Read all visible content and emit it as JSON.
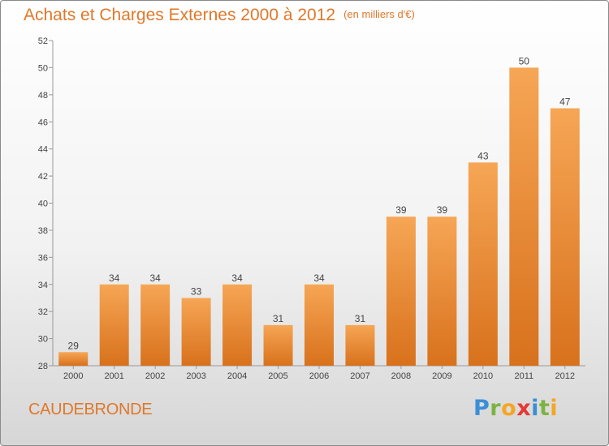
{
  "chart_data": {
    "type": "bar",
    "title": "Achats et Charges Externes 2000 à 2012",
    "unit": "(en milliers d'€)",
    "categories": [
      "2000",
      "2001",
      "2002",
      "2003",
      "2004",
      "2005",
      "2006",
      "2007",
      "2008",
      "2009",
      "2010",
      "2011",
      "2012"
    ],
    "values": [
      29,
      34,
      34,
      33,
      34,
      31,
      34,
      31,
      39,
      39,
      43,
      50,
      47
    ],
    "ylim": [
      28,
      52
    ],
    "yticks": [
      28,
      30,
      32,
      34,
      36,
      38,
      40,
      42,
      44,
      46,
      48,
      50,
      52
    ],
    "grid": false,
    "bar_color": "#f28c28"
  },
  "place_name": "CAUDEBRONDE",
  "logo": {
    "letters": [
      "P",
      "r",
      "o",
      "x",
      "i",
      "t",
      "i"
    ],
    "colors": [
      "#3a8fd6",
      "#7cb342",
      "#f5a623",
      "#e53935",
      "#3a8fd6",
      "#7cb342",
      "#f5a623"
    ]
  }
}
